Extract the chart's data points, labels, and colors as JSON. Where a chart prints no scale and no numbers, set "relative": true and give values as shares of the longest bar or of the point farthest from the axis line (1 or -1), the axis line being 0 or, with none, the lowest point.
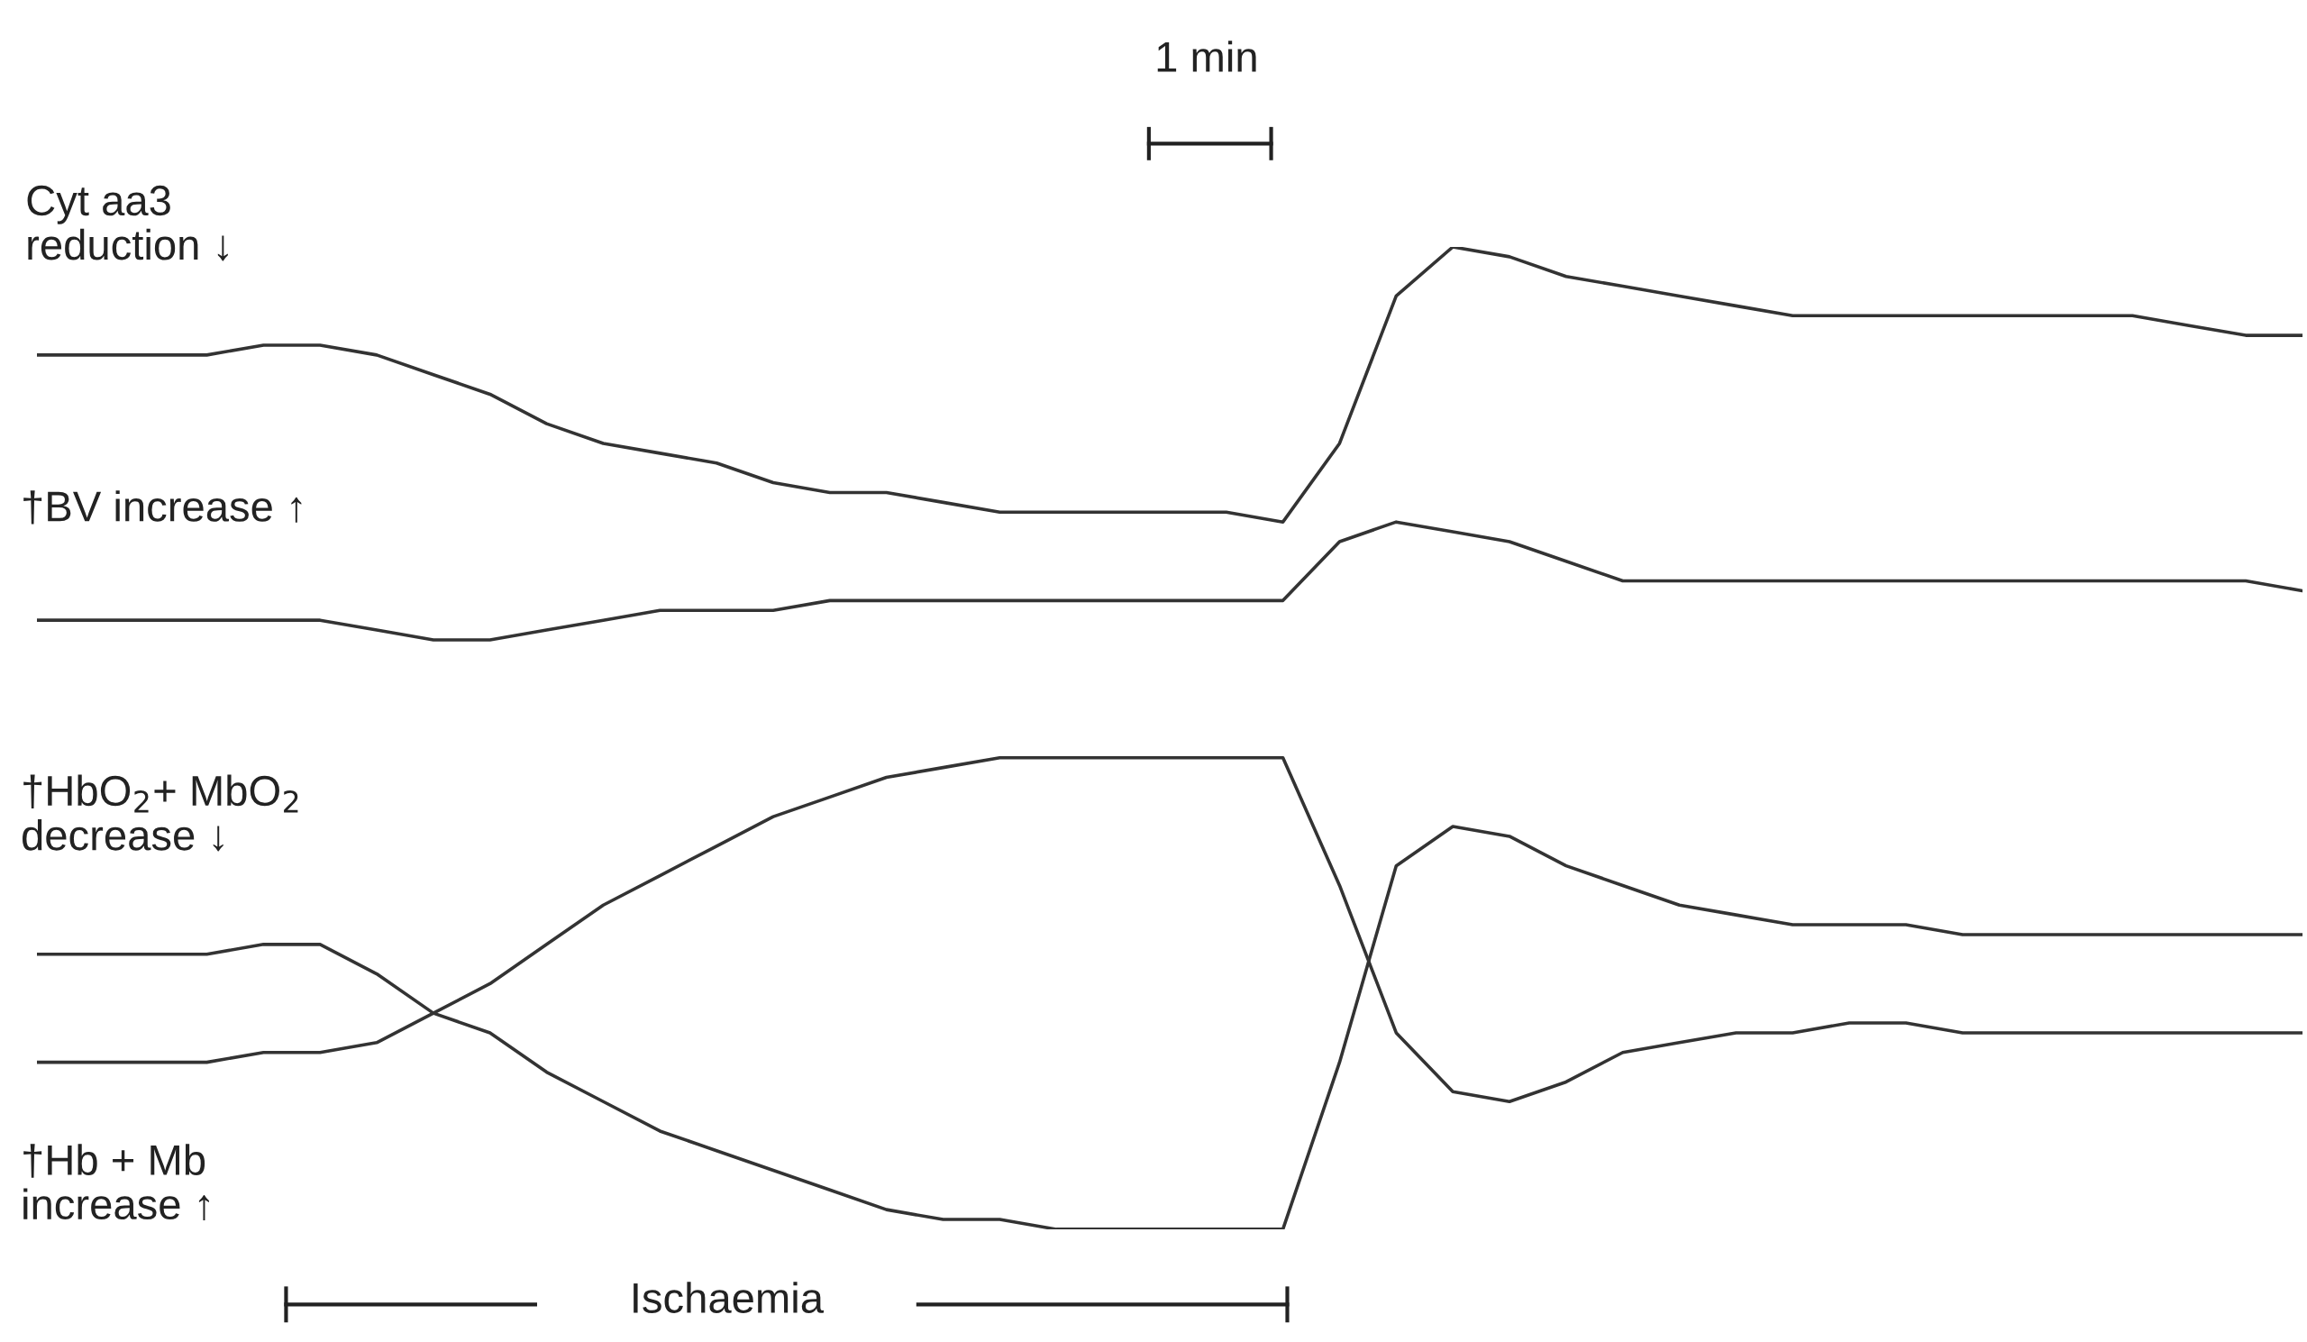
{
  "chart_data": {
    "type": "line",
    "relative": true,
    "legend": false,
    "marker": "none",
    "line_style": "solid",
    "categories": [
      null,
      null,
      null,
      null,
      null,
      null,
      null,
      null,
      null,
      null,
      null,
      null,
      null,
      null,
      null,
      null,
      null,
      null,
      null,
      null,
      null,
      null,
      null,
      null,
      null,
      null,
      null,
      null,
      null,
      null,
      null,
      null,
      null,
      null,
      null,
      null,
      null,
      null,
      null,
      null,
      null
    ],
    "series": [
      {
        "name": "Cyt aa3\nreduction ↓",
        "color": "#333333",
        "values": [
          0.89,
          0.89,
          0.89,
          0.89,
          0.9,
          0.9,
          0.89,
          0.87,
          0.85,
          0.82,
          0.8,
          0.79,
          0.78,
          0.76,
          0.75,
          0.75,
          0.74,
          0.73,
          0.73,
          0.73,
          0.73,
          0.73,
          0.72,
          0.8,
          0.95,
          1,
          0.99,
          0.97,
          0.96,
          0.95,
          0.94,
          0.93,
          0.93,
          0.93,
          0.93,
          0.93,
          0.93,
          0.93,
          0.92,
          0.91,
          0.91
        ]
      },
      {
        "name": "†BV increase ↑",
        "color": "#333333",
        "values": [
          0.62,
          0.62,
          0.62,
          0.62,
          0.62,
          0.62,
          0.61,
          0.6,
          0.6,
          0.61,
          0.62,
          0.63,
          0.63,
          0.63,
          0.64,
          0.64,
          0.64,
          0.64,
          0.64,
          0.64,
          0.64,
          0.64,
          0.64,
          0.7,
          0.72,
          0.71,
          0.7,
          0.68,
          0.66,
          0.66,
          0.66,
          0.66,
          0.66,
          0.66,
          0.66,
          0.66,
          0.66,
          0.66,
          0.66,
          0.66,
          0.65
        ]
      },
      {
        "name": "†HbO$_{2}$+ MbO$_{2}$\ndecrease ↓",
        "color": "#333333",
        "values": [
          0.28,
          0.28,
          0.28,
          0.28,
          0.29,
          0.29,
          0.26,
          0.22,
          0.2,
          0.16,
          0.13,
          0.1,
          0.08,
          0.06,
          0.04,
          0.02,
          0.01,
          0.01,
          0,
          0,
          0,
          0,
          0,
          0.17,
          0.37,
          0.41,
          0.4,
          0.37,
          0.35,
          0.33,
          0.32,
          0.31,
          0.31,
          0.31,
          0.3,
          0.3,
          0.3,
          0.3,
          0.3,
          0.3,
          0.3
        ]
      },
      {
        "name": "†Hb + Mb\nincrease ↑",
        "color": "#333333",
        "values": [
          0.17,
          0.17,
          0.17,
          0.17,
          0.18,
          0.18,
          0.19,
          0.22,
          0.25,
          0.29,
          0.33,
          0.36,
          0.39,
          0.42,
          0.44,
          0.46,
          0.47,
          0.48,
          0.48,
          0.48,
          0.48,
          0.48,
          0.48,
          0.35,
          0.2,
          0.14,
          0.13,
          0.15,
          0.18,
          0.19,
          0.2,
          0.2,
          0.21,
          0.21,
          0.2,
          0.2,
          0.2,
          0.2,
          0.2,
          0.2,
          0.2
        ]
      }
    ],
    "annotations": [
      "1 min",
      "Ischaemia"
    ]
  }
}
